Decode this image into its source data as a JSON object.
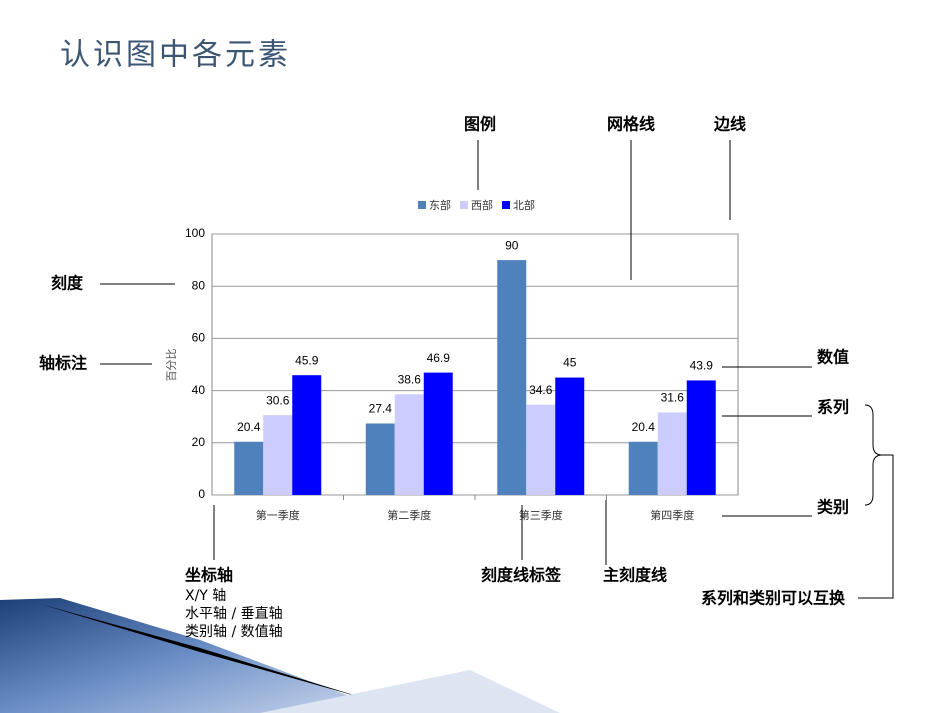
{
  "title": "认识图中各元素",
  "chart_data": {
    "type": "bar",
    "categories": [
      "第一季度",
      "第二季度",
      "第三季度",
      "第四季度"
    ],
    "series": [
      {
        "name": "东部",
        "color": "#4f81bd",
        "values": [
          20.4,
          27.4,
          90,
          20.4
        ]
      },
      {
        "name": "西部",
        "color": "#ccccff",
        "values": [
          30.6,
          38.6,
          34.6,
          31.6
        ]
      },
      {
        "name": "北部",
        "color": "#0000ff",
        "values": [
          45.9,
          46.9,
          45,
          43.9
        ]
      }
    ],
    "y_label": "百分比",
    "ylim": [
      0,
      100
    ],
    "yticks": [
      0,
      20,
      40,
      60,
      80,
      100
    ],
    "grid": true,
    "legend": "top"
  },
  "annotations": [
    "图例",
    "网格线",
    "边线",
    "刻度",
    "轴标注",
    "数值",
    "系列",
    "类别",
    "刻度线标签",
    "主刻度线",
    "坐标轴",
    "系列和类别可以互换"
  ],
  "axis_notes": [
    "X/Y 轴",
    "水平轴 / 垂直轴",
    "类别轴 / 数值轴"
  ]
}
